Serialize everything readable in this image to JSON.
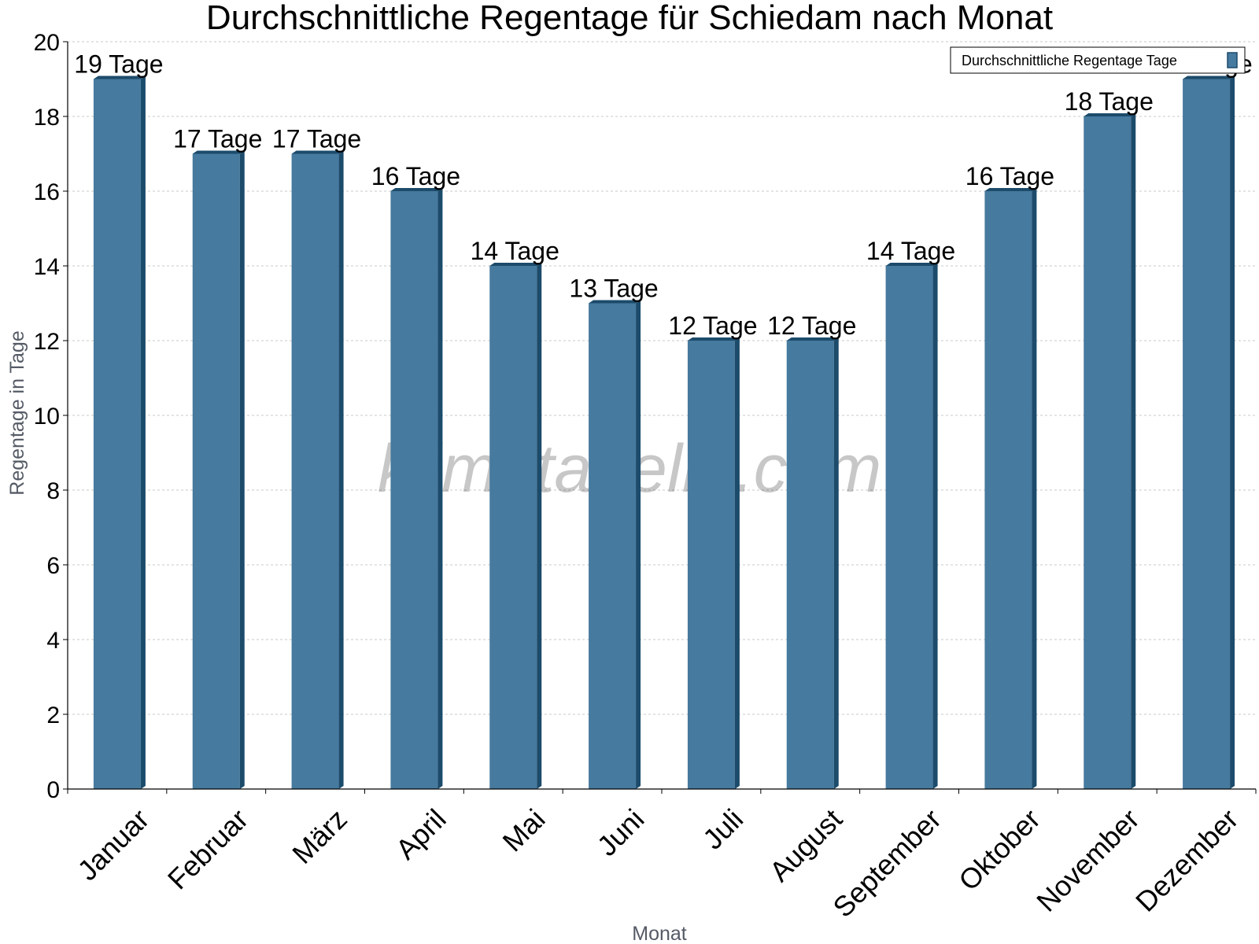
{
  "chart_data": {
    "type": "bar",
    "title": "Durchschnittliche Regentage für Schiedam nach Monat",
    "xlabel": "Monat",
    "ylabel": "Regentage in Tage",
    "ylim": [
      0,
      20
    ],
    "yticks": [
      0,
      2,
      4,
      6,
      8,
      10,
      12,
      14,
      16,
      18,
      20
    ],
    "grid": true,
    "legend_position": "top-right",
    "categories": [
      "Januar",
      "Februar",
      "März",
      "April",
      "Mai",
      "Juni",
      "Juli",
      "August",
      "September",
      "Oktober",
      "November",
      "Dezember"
    ],
    "series": [
      {
        "name": "Durchschnittliche Regentage Tage",
        "values": [
          19,
          17,
          17,
          16,
          14,
          13,
          12,
          12,
          14,
          16,
          18,
          19
        ],
        "labels": [
          "19 Tage",
          "17 Tage",
          "17 Tage",
          "16 Tage",
          "14 Tage",
          "13 Tage",
          "12 Tage",
          "12 Tage",
          "14 Tage",
          "16 Tage",
          "18 Tage",
          "19 Tage"
        ],
        "color": "#467a9e",
        "side_color": "#1c4b6b"
      }
    ],
    "watermark": "klimatabelle.com"
  }
}
